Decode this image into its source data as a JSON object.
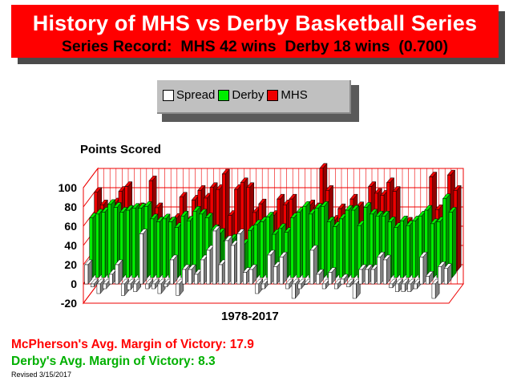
{
  "header": {
    "title": "History of MHS vs Derby Basketball Series",
    "subtitle": "Series Record:  MHS 42 wins  Derby 18 wins  (0.700)"
  },
  "legend": [
    {
      "label": "Spread",
      "color": "#ffffff"
    },
    {
      "label": "Derby",
      "color": "#00ee00"
    },
    {
      "label": "MHS",
      "color": "#ee0000"
    }
  ],
  "chart_data": {
    "type": "bar",
    "title": "",
    "ylabel": "Points Scored",
    "xlabel": "1978-2017",
    "ylim": [
      -20,
      100
    ],
    "yticks": [
      100,
      80,
      60,
      40,
      20,
      0,
      -20
    ],
    "series": [
      {
        "name": "Spread",
        "values": [
          20,
          -3,
          -10,
          -5,
          10,
          20,
          -12,
          -6,
          -8,
          52,
          -5,
          -5,
          -10,
          -3,
          25,
          -12,
          15,
          15,
          10,
          25,
          35,
          55,
          20,
          45,
          40,
          52,
          12,
          15,
          -10,
          -5,
          30,
          18,
          28,
          -5,
          -15,
          -5,
          0,
          35,
          10,
          -5,
          12,
          -5,
          5,
          -3,
          -15,
          15,
          15,
          15,
          28,
          25,
          -4,
          -8,
          -8,
          -8,
          -5,
          28,
          8,
          -15,
          18,
          16
        ],
        "colors": {
          "positive": "#ffffff",
          "negative": "#ffffff"
        }
      },
      {
        "name": "Derby",
        "values": [
          62,
          66,
          68,
          76,
          73,
          68,
          70,
          72,
          72,
          74,
          61,
          58,
          61,
          58,
          52,
          64,
          59,
          69,
          66,
          62,
          50,
          46,
          38,
          40,
          40,
          35,
          49,
          55,
          58,
          63,
          45,
          51,
          47,
          62,
          68,
          74,
          66,
          72,
          74,
          58,
          53,
          61,
          70,
          70,
          54,
          73,
          66,
          64,
          64,
          58,
          52,
          59,
          54,
          59,
          64,
          70,
          56,
          58,
          82,
          68
        ]
      },
      {
        "name": "MHS",
        "values": [
          82,
          69,
          58,
          71,
          83,
          88,
          58,
          66,
          64,
          94,
          66,
          53,
          51,
          55,
          77,
          52,
          74,
          84,
          76,
          87,
          85,
          101,
          58,
          85,
          92,
          87,
          61,
          70,
          48,
          58,
          75,
          69,
          75,
          57,
          53,
          69,
          66,
          107,
          84,
          53,
          65,
          56,
          75,
          67,
          39,
          88,
          81,
          79,
          92,
          83,
          48,
          51,
          46,
          51,
          59,
          98,
          64,
          43,
          100,
          84
        ]
      }
    ]
  },
  "footer": {
    "mhs_margin": "McPherson's Avg. Margin of Victory: 17.9",
    "derby_margin": "Derby's Avg. Margin of Victory: 8.3",
    "revised": "Revised 3/15/2017"
  }
}
